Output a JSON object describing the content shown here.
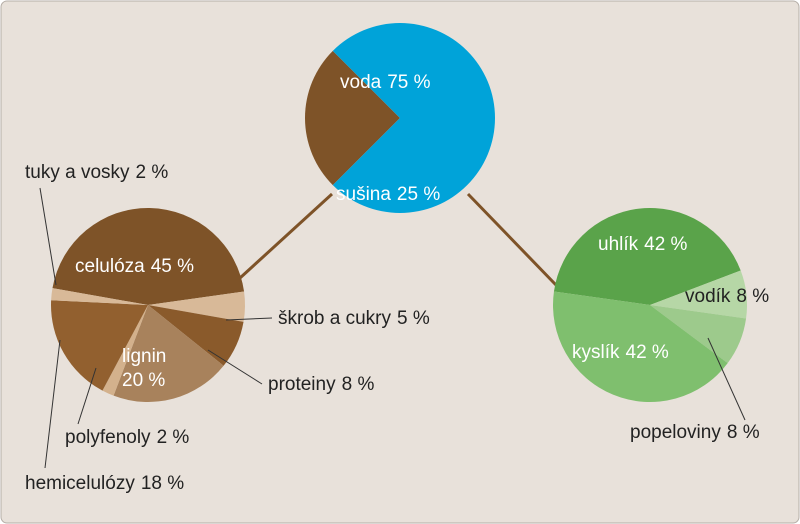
{
  "chart_data": [
    {
      "type": "pie",
      "categories": [
        "voda",
        "sušina"
      ],
      "values": [
        75,
        25
      ],
      "value_labels": [
        "75 %",
        "25 %"
      ],
      "colors": [
        "#00a3d9",
        "#7e5328"
      ]
    },
    {
      "type": "pie",
      "categories": [
        "celulóza",
        "škrob a cukry",
        "proteiny",
        "lignin",
        "polyfenoly",
        "hemicelulózy",
        "tuky a vosky"
      ],
      "values": [
        45,
        5,
        8,
        20,
        2,
        18,
        2
      ],
      "value_labels": [
        "45 %",
        "5 %",
        "8 %",
        "20 %",
        "2 %",
        "18 %",
        "2 %"
      ],
      "colors": [
        "#7e5328",
        "#d8b998",
        "#8a5a2b",
        "#a8825c",
        "#d3b18c",
        "#92602f",
        "#d8b998"
      ]
    },
    {
      "type": "pie",
      "categories": [
        "uhlík",
        "vodík",
        "popeloviny",
        "kyslík"
      ],
      "values": [
        42,
        8,
        8,
        42
      ],
      "value_labels": [
        "42 %",
        "8 %",
        "8 %",
        "42 %"
      ],
      "colors": [
        "#5aa34a",
        "#b6d7a6",
        "#9dca8c",
        "#7fbf6e"
      ]
    }
  ]
}
